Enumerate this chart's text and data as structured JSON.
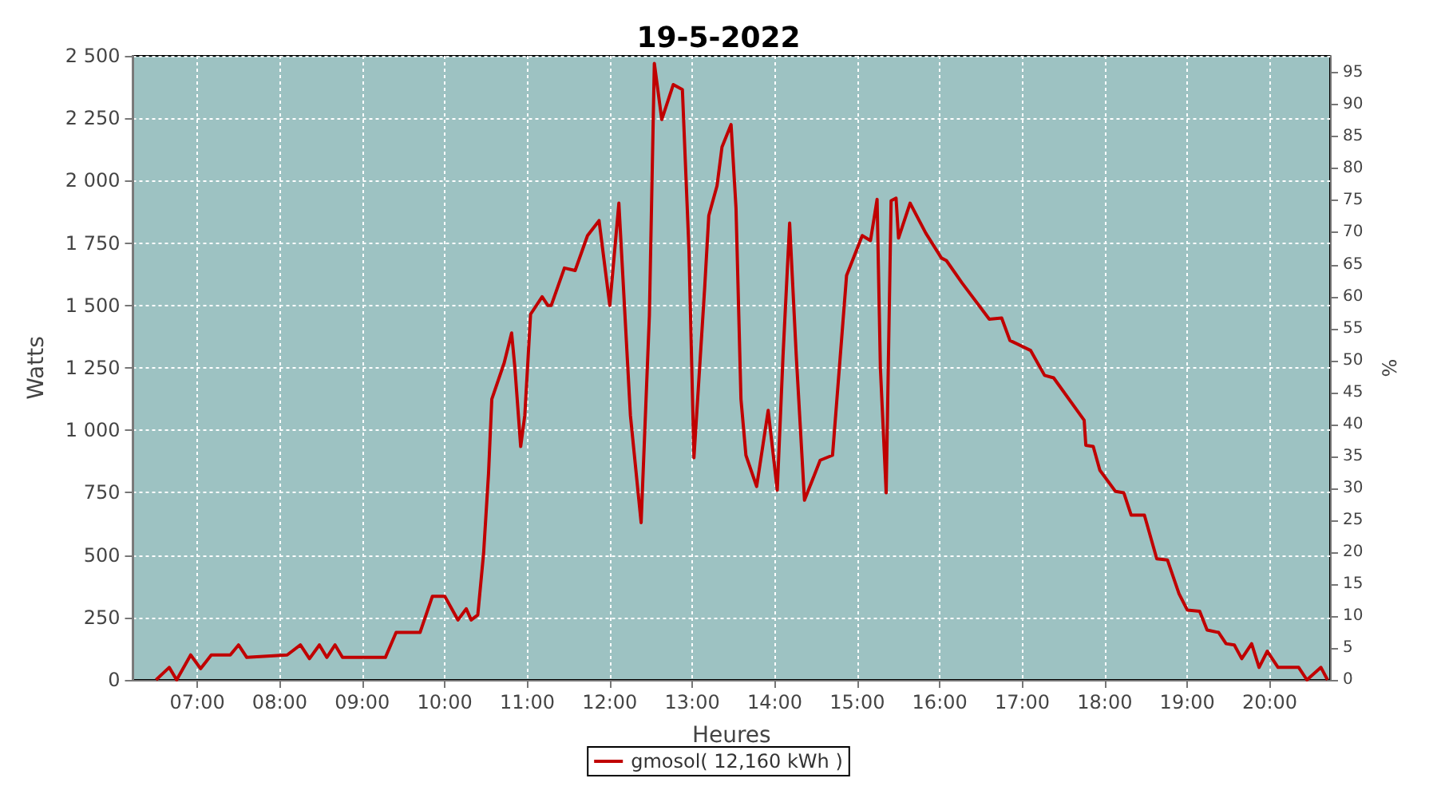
{
  "chart_data": {
    "type": "line",
    "title": "19-5-2022",
    "xlabel": "Heures",
    "ylabel": "Watts",
    "y2label": "%",
    "xlim": [
      6.22,
      20.73
    ],
    "xticks": [
      {
        "value": 7,
        "label": "07:00"
      },
      {
        "value": 8,
        "label": "08:00"
      },
      {
        "value": 9,
        "label": "09:00"
      },
      {
        "value": 10,
        "label": "10:00"
      },
      {
        "value": 11,
        "label": "11:00"
      },
      {
        "value": 12,
        "label": "12:00"
      },
      {
        "value": 13,
        "label": "13:00"
      },
      {
        "value": 14,
        "label": "14:00"
      },
      {
        "value": 15,
        "label": "15:00"
      },
      {
        "value": 16,
        "label": "16:00"
      },
      {
        "value": 17,
        "label": "17:00"
      },
      {
        "value": 18,
        "label": "18:00"
      },
      {
        "value": 19,
        "label": "19:00"
      },
      {
        "value": 20,
        "label": "20:00"
      }
    ],
    "ylim": [
      0,
      2500
    ],
    "yticks": [
      0,
      250,
      500,
      750,
      {
        "value": 1000,
        "label": "1 000"
      },
      {
        "value": 1250,
        "label": "1 250"
      },
      {
        "value": 1500,
        "label": "1 500"
      },
      {
        "value": 1750,
        "label": "1 750"
      },
      {
        "value": 2000,
        "label": "2 000"
      },
      {
        "value": 2250,
        "label": "2 250"
      },
      {
        "value": 2500,
        "label": "2 500"
      }
    ],
    "y2lim": [
      0,
      97.66
    ],
    "y2ticks": [
      0,
      5,
      10,
      15,
      20,
      25,
      30,
      35,
      40,
      45,
      50,
      55,
      60,
      65,
      70,
      75,
      80,
      85,
      90,
      95
    ],
    "grid": true,
    "legend": "bottom",
    "marker": "none",
    "line_style": "solid",
    "series": [
      {
        "name": "gmosol( 12,160 kWh )",
        "color": "#c00000",
        "x": [
          6.5,
          6.66,
          6.75,
          6.92,
          7.04,
          7.17,
          7.4,
          7.5,
          7.6,
          8.09,
          8.25,
          8.36,
          8.48,
          8.57,
          8.67,
          8.76,
          9.28,
          9.41,
          9.47,
          9.7,
          9.85,
          10.0,
          10.16,
          10.26,
          10.32,
          10.4,
          10.47,
          10.53,
          10.57,
          10.72,
          10.81,
          10.85,
          10.92,
          10.97,
          11.04,
          11.18,
          11.25,
          11.29,
          11.45,
          11.58,
          11.73,
          11.87,
          12.0,
          12.11,
          12.25,
          12.38,
          12.48,
          12.54,
          12.63,
          12.77,
          12.88,
          12.96,
          13.02,
          13.15,
          13.2,
          13.3,
          13.36,
          13.47,
          13.53,
          13.59,
          13.65,
          13.78,
          13.92,
          14.03,
          14.1,
          14.18,
          14.26,
          14.36,
          14.55,
          14.7,
          14.87,
          15.06,
          15.16,
          15.24,
          15.28,
          15.35,
          15.41,
          15.47,
          15.5,
          15.64,
          15.83,
          16.02,
          16.08,
          16.27,
          16.6,
          16.75,
          16.85,
          17.1,
          17.27,
          17.38,
          17.75,
          17.77,
          17.86,
          17.94,
          18.13,
          18.23,
          18.32,
          18.48,
          18.63,
          18.76,
          18.9,
          19.0,
          19.15,
          19.24,
          19.38,
          19.47,
          19.57,
          19.66,
          19.78,
          19.87,
          19.97,
          20.1,
          20.35,
          20.45,
          20.62,
          20.7
        ],
        "values": [
          0,
          50,
          0,
          100,
          45,
          100,
          100,
          140,
          90,
          100,
          140,
          85,
          140,
          90,
          140,
          90,
          90,
          190,
          190,
          190,
          335,
          335,
          240,
          285,
          240,
          260,
          505,
          825,
          1125,
          1270,
          1390,
          1250,
          935,
          1060,
          1465,
          1535,
          1500,
          1500,
          1650,
          1640,
          1780,
          1840,
          1500,
          1910,
          1060,
          630,
          1460,
          2470,
          2245,
          2385,
          2365,
          1720,
          890,
          1570,
          1860,
          1980,
          2135,
          2225,
          1890,
          1125,
          900,
          775,
          1080,
          760,
          1300,
          1830,
          1300,
          720,
          880,
          900,
          1620,
          1780,
          1760,
          1925,
          1250,
          750,
          1920,
          1930,
          1770,
          1910,
          1790,
          1690,
          1680,
          1590,
          1445,
          1450,
          1360,
          1320,
          1220,
          1210,
          1040,
          940,
          935,
          840,
          755,
          750,
          660,
          660,
          485,
          480,
          345,
          280,
          275,
          200,
          190,
          145,
          140,
          85,
          145,
          50,
          115,
          50,
          50,
          0,
          50,
          0
        ]
      }
    ]
  }
}
